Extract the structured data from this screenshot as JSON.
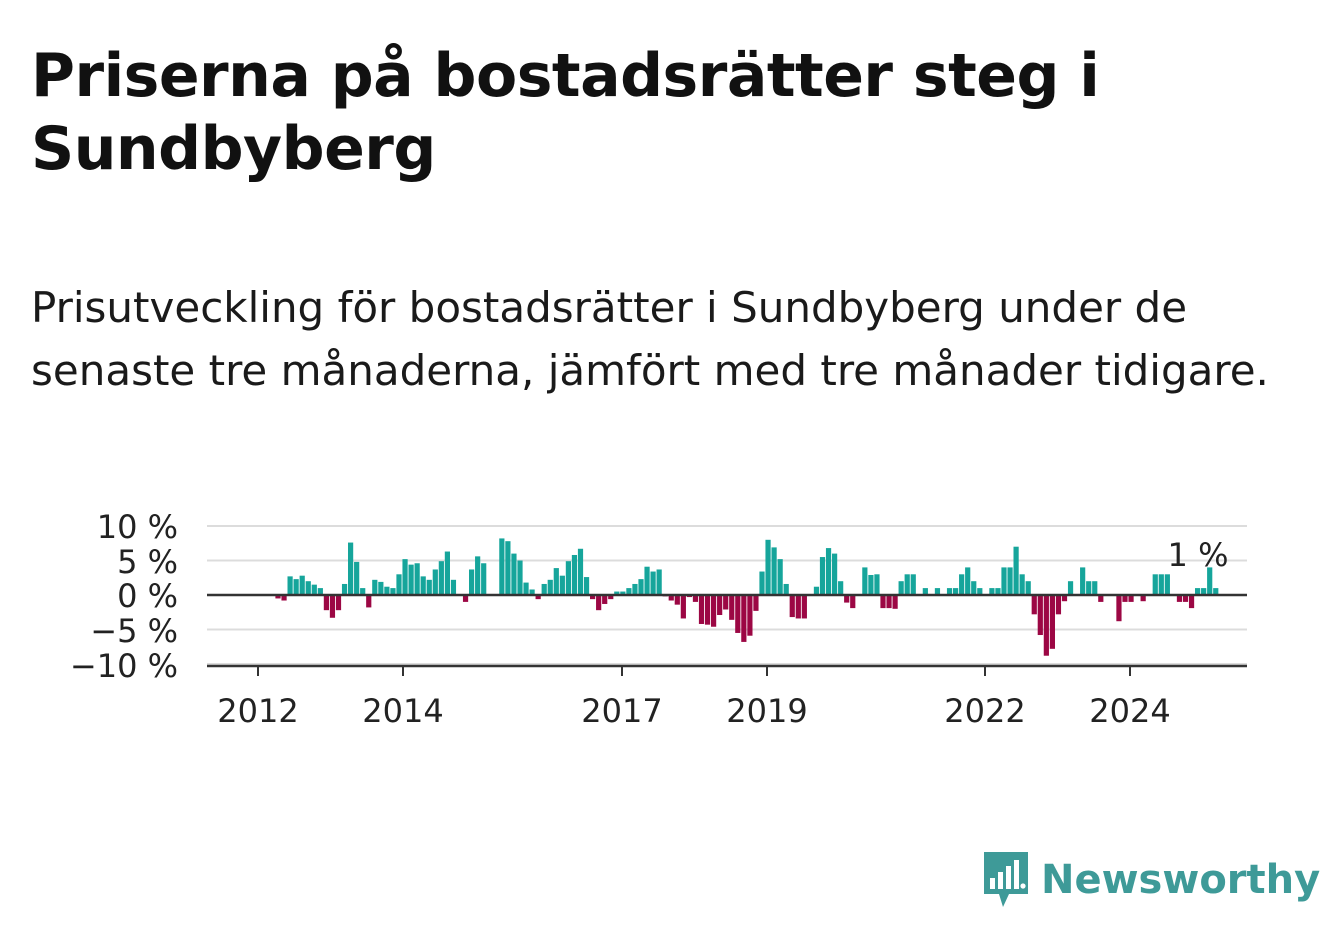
{
  "title": "Priserna på bostadsrätter steg i Sundbyberg",
  "subtitle": "Prisutveckling för bostadsrätter i Sundbyberg under de senaste tre månaderna, jämfört med tre månader tidigare.",
  "brand": "Newsworthy",
  "colors": {
    "positive": "#16a59b",
    "negative": "#9c0744",
    "brand": "#3e9a98"
  },
  "chart_data": {
    "type": "bar",
    "title": "Priserna på bostadsrätter steg i Sundbyberg",
    "ylabel": "",
    "xlabel": "",
    "ylim": [
      -10,
      10
    ],
    "y_ticks": [
      "10 %",
      "5 %",
      "0 %",
      "−5 %",
      "−10 %"
    ],
    "x_ticks": [
      "2012",
      "2014",
      "2017",
      "2019",
      "2022",
      "2024"
    ],
    "annotation": "1 %",
    "start_month": "2011-08",
    "unit": "%",
    "values": [
      0,
      0,
      0,
      0,
      0,
      0,
      0,
      0,
      -0.5,
      -0.8,
      2.7,
      2.3,
      2.8,
      2.0,
      1.5,
      1.0,
      -2.2,
      -3.3,
      -2.2,
      1.6,
      7.6,
      4.8,
      1.0,
      -1.8,
      2.2,
      1.9,
      1.2,
      1.0,
      3.0,
      5.2,
      4.4,
      4.6,
      2.7,
      2.2,
      3.7,
      4.9,
      6.3,
      2.2,
      0,
      -1.0,
      3.7,
      5.6,
      4.6,
      0,
      0,
      8.2,
      7.8,
      6.0,
      5.0,
      1.8,
      0.8,
      -0.6,
      1.6,
      2.2,
      3.9,
      2.8,
      4.9,
      5.8,
      6.7,
      2.6,
      -0.6,
      -2.2,
      -1.3,
      -0.6,
      0.5,
      0.5,
      1.0,
      1.6,
      2.3,
      4.1,
      3.4,
      3.7,
      -0.2,
      -0.8,
      -1.4,
      -3.4,
      -0.3,
      -1.0,
      -4.2,
      -4.3,
      -4.6,
      -2.9,
      -2.1,
      -3.6,
      -5.5,
      -6.8,
      -5.9,
      -2.3,
      3.4,
      8.0,
      6.9,
      5.2,
      1.6,
      -3.2,
      -3.4,
      -3.4,
      0,
      1.2,
      5.5,
      6.8,
      6.0,
      2.0,
      -1.1,
      -1.9,
      0,
      4.0,
      2.9,
      3.0,
      -1.9,
      -1.9,
      -2.0,
      2.0,
      3.0,
      3.0,
      0,
      1.0,
      0,
      1.0,
      0,
      1.0,
      1.0,
      3.0,
      4.0,
      2.0,
      1.0,
      0,
      1.0,
      1.0,
      4.0,
      4.0,
      7.0,
      3.0,
      2.0,
      -2.8,
      -5.8,
      -8.8,
      -7.8,
      -2.8,
      -0.9,
      2.0,
      0,
      4.0,
      2.0,
      2.0,
      -1.0,
      0,
      0,
      -3.8,
      -1.0,
      -1.0,
      0,
      -0.9,
      0,
      3.0,
      3.0,
      3.0,
      0,
      -1.0,
      -1.0,
      -1.9,
      1.0,
      1.0,
      4.0,
      1.0
    ]
  }
}
